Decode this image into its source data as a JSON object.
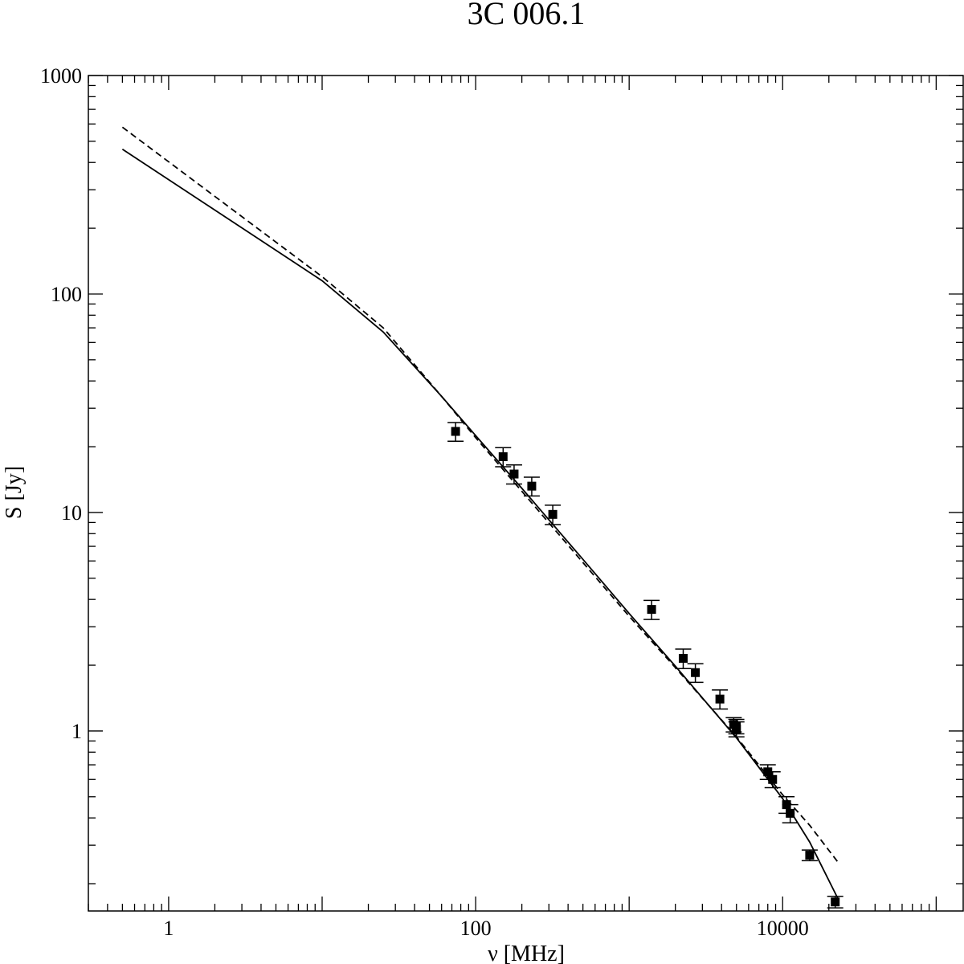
{
  "chart_data": {
    "type": "scatter",
    "title": "3C 006.1",
    "xlabel": "ν [MHz]",
    "ylabel": "S [Jy]",
    "x_scale": "log",
    "y_scale": "log",
    "xlim": [
      0.3,
      150000
    ],
    "ylim": [
      0.15,
      1000
    ],
    "x_ticks": [
      {
        "value": 1,
        "label": "1"
      },
      {
        "value": 100,
        "label": "100"
      },
      {
        "value": 10000,
        "label": "10000"
      }
    ],
    "y_ticks": [
      {
        "value": 1,
        "label": "1"
      },
      {
        "value": 10,
        "label": "10"
      },
      {
        "value": 100,
        "label": "100"
      },
      {
        "value": 1000,
        "label": "1000"
      }
    ],
    "grid": false,
    "series": [
      {
        "style": "solid",
        "x": [
          0.5,
          10,
          25,
          60,
          100,
          200,
          500,
          1000,
          2000,
          5000,
          10000,
          15000,
          23000
        ],
        "y": [
          460,
          115,
          67,
          34,
          22.5,
          12.9,
          6.1,
          3.45,
          1.98,
          0.93,
          0.49,
          0.31,
          0.17
        ]
      },
      {
        "style": "dashed",
        "x": [
          0.5,
          10,
          25,
          60,
          100,
          200,
          500,
          1000,
          2000,
          5000,
          10000,
          15000,
          23000
        ],
        "y": [
          580,
          120,
          70,
          34,
          22,
          12.5,
          5.9,
          3.35,
          1.95,
          0.94,
          0.51,
          0.37,
          0.25
        ]
      },
      {
        "style": "markers",
        "points": [
          {
            "x": 74,
            "y": 23.5,
            "err": 2.3
          },
          {
            "x": 151,
            "y": 18,
            "err": 1.8
          },
          {
            "x": 178,
            "y": 15,
            "err": 1.5
          },
          {
            "x": 232,
            "y": 13.2,
            "err": 1.3
          },
          {
            "x": 318,
            "y": 9.8,
            "err": 1.0
          },
          {
            "x": 1400,
            "y": 3.6,
            "err": 0.36
          },
          {
            "x": 2250,
            "y": 2.15,
            "err": 0.22
          },
          {
            "x": 2700,
            "y": 1.85,
            "err": 0.18
          },
          {
            "x": 3900,
            "y": 1.4,
            "err": 0.14
          },
          {
            "x": 4800,
            "y": 1.07,
            "err": 0.08
          },
          {
            "x": 4990,
            "y": 1.05,
            "err": 0.08
          },
          {
            "x": 5000,
            "y": 1.02,
            "err": 0.08
          },
          {
            "x": 8000,
            "y": 0.65,
            "err": 0.05
          },
          {
            "x": 8600,
            "y": 0.6,
            "err": 0.05
          },
          {
            "x": 10600,
            "y": 0.46,
            "err": 0.04
          },
          {
            "x": 11200,
            "y": 0.42,
            "err": 0.04
          },
          {
            "x": 15000,
            "y": 0.27,
            "err": 0.015
          },
          {
            "x": 22000,
            "y": 0.165,
            "err": 0.01
          }
        ]
      }
    ]
  }
}
